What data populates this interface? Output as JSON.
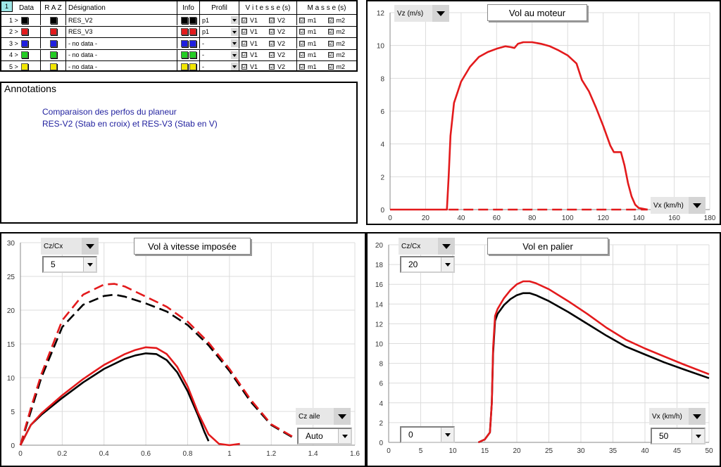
{
  "table": {
    "corner_label": "1",
    "headers": {
      "data": "Data",
      "raz": "R A Z",
      "designation": "Désignation",
      "info": "Info",
      "profil": "Profil",
      "vitesses": "V i t e s s e (s)",
      "masses": "M a s s e (s)"
    },
    "rows": [
      {
        "index": "1 >",
        "color": "#000000",
        "designation": "RES_V2",
        "profil": "p1",
        "v1": "V1",
        "v2": "V2",
        "m1": "m1",
        "m2": "m2"
      },
      {
        "index": "2 >",
        "color": "#e31a1c",
        "designation": "RES_V3",
        "profil": "p1",
        "v1": "V1",
        "v2": "V2",
        "m1": "m1",
        "m2": "m2"
      },
      {
        "index": "3 >",
        "color": "#1f1fe0",
        "designation": "- no data -",
        "profil": "-",
        "v1": "V1",
        "v2": "V2",
        "m1": "m1",
        "m2": "m2"
      },
      {
        "index": "4 >",
        "color": "#22cc22",
        "designation": "- no data -",
        "profil": "-",
        "v1": "V1",
        "v2": "V2",
        "m1": "m1",
        "m2": "m2"
      },
      {
        "index": "5 >",
        "color": "#f2e600",
        "designation": "- no data -",
        "profil": "-",
        "v1": "V1",
        "v2": "V2",
        "m1": "m1",
        "m2": "m2"
      }
    ],
    "check_glyph": "☑"
  },
  "annotations": {
    "title": "Annotations",
    "lines": [
      "Comparaison des perfos du planeur",
      "RES-V2 (Stab en croix) et RES-V3 (Stab en V)"
    ]
  },
  "charts": {
    "motor": {
      "title": "Vol au moteur",
      "y_selector": "Vz (m/s)",
      "x_selector": "Vx (km/h)"
    },
    "imposed": {
      "title": "Vol à vitesse imposée",
      "y_selector": "Cz/Cx",
      "y_combo": "5",
      "x_selector": "Cz aile",
      "x_combo": "Auto"
    },
    "level": {
      "title": "Vol en palier",
      "y_selector": "Cz/Cx",
      "y_combo": "20",
      "x_selector": "Vx (km/h)",
      "x_combo": "50",
      "left_combo": "0"
    }
  },
  "chart_data": [
    {
      "id": "motor",
      "type": "line",
      "title": "Vol au moteur",
      "xlabel": "Vx (km/h)",
      "ylabel": "Vz (m/s)",
      "xlim": [
        0,
        180
      ],
      "ylim": [
        0,
        12
      ],
      "xticks": [
        0,
        20,
        40,
        60,
        80,
        100,
        120,
        140,
        160,
        180
      ],
      "yticks": [
        0,
        2,
        4,
        6,
        8,
        10,
        12
      ],
      "grid": true,
      "series": [
        {
          "name": "RES_V3",
          "color": "#e31a1c",
          "style": "solid",
          "x": [
            0,
            32,
            33,
            34,
            36,
            40,
            45,
            50,
            55,
            60,
            65,
            68,
            70,
            72,
            75,
            80,
            85,
            90,
            95,
            100,
            105,
            108,
            112,
            116,
            120,
            124,
            126,
            128,
            130,
            132,
            134,
            136,
            138,
            140,
            145
          ],
          "y": [
            0,
            0,
            2,
            4.5,
            6.5,
            7.8,
            8.7,
            9.3,
            9.6,
            9.8,
            9.95,
            9.9,
            9.85,
            10.1,
            10.2,
            10.2,
            10.1,
            9.95,
            9.7,
            9.4,
            8.9,
            7.9,
            7.2,
            6.2,
            5.1,
            3.9,
            3.5,
            3.5,
            3.5,
            2.7,
            1.6,
            0.8,
            0.3,
            0.1,
            0
          ]
        },
        {
          "name": "RES_V3 (V2)",
          "color": "#e31a1c",
          "style": "dashed",
          "x": [
            33,
            145
          ],
          "y": [
            0,
            0
          ]
        }
      ]
    },
    {
      "id": "imposed",
      "type": "line",
      "title": "Vol à vitesse imposée",
      "xlabel": "Cz aile",
      "ylabel": "Cz/Cx",
      "xlim": [
        0,
        1.6
      ],
      "ylim": [
        0,
        30
      ],
      "xticks": [
        0,
        0.2,
        0.4,
        0.6,
        0.8,
        1,
        1.2,
        1.4,
        1.6
      ],
      "yticks": [
        0,
        5,
        10,
        15,
        20,
        25,
        30
      ],
      "grid": true,
      "series": [
        {
          "name": "RES_V2",
          "color": "#000000",
          "style": "solid",
          "x": [
            0,
            0.05,
            0.1,
            0.2,
            0.3,
            0.4,
            0.5,
            0.55,
            0.6,
            0.65,
            0.7,
            0.75,
            0.8,
            0.85,
            0.88,
            0.9
          ],
          "y": [
            0,
            3,
            4.5,
            7,
            9.3,
            11.3,
            12.8,
            13.3,
            13.6,
            13.5,
            12.6,
            10.8,
            8,
            4.4,
            2,
            0.6
          ]
        },
        {
          "name": "RES_V3",
          "color": "#e31a1c",
          "style": "solid",
          "x": [
            0,
            0.05,
            0.1,
            0.2,
            0.3,
            0.4,
            0.5,
            0.55,
            0.6,
            0.65,
            0.7,
            0.75,
            0.8,
            0.85,
            0.9,
            0.95,
            1.0,
            1.05
          ],
          "y": [
            0,
            3,
            4.7,
            7.4,
            9.8,
            11.9,
            13.5,
            14.1,
            14.5,
            14.4,
            13.5,
            11.6,
            8.7,
            4.8,
            1.6,
            0.2,
            0,
            0.2
          ]
        },
        {
          "name": "RES_V2 (V2)",
          "color": "#000000",
          "style": "dashed",
          "x": [
            0,
            0.05,
            0.1,
            0.2,
            0.3,
            0.4,
            0.45,
            0.5,
            0.6,
            0.7,
            0.8,
            0.9,
            1.0,
            1.1,
            1.2,
            1.3
          ],
          "y": [
            0,
            5,
            10,
            17.5,
            20.8,
            22.1,
            22.3,
            22,
            21,
            19.8,
            17.8,
            14.8,
            11,
            6.5,
            3,
            1.2
          ]
        },
        {
          "name": "RES_V3 (V2)",
          "color": "#e31a1c",
          "style": "dashed",
          "x": [
            0,
            0.05,
            0.1,
            0.2,
            0.3,
            0.4,
            0.45,
            0.5,
            0.6,
            0.7,
            0.8,
            0.9,
            1.0,
            1.1,
            1.2,
            1.3
          ],
          "y": [
            0,
            5.5,
            10.5,
            18.5,
            22.3,
            23.8,
            23.9,
            23.5,
            22,
            20.5,
            18.3,
            15.2,
            11.3,
            6.8,
            3.1,
            1.3
          ]
        }
      ]
    },
    {
      "id": "level",
      "type": "line",
      "title": "Vol en palier",
      "xlabel": "Vx (km/h)",
      "ylabel": "Cz/Cx",
      "xlim": [
        0,
        50
      ],
      "ylim": [
        0,
        20
      ],
      "xticks": [
        0,
        5,
        10,
        15,
        20,
        25,
        30,
        35,
        40,
        45,
        50
      ],
      "yticks": [
        0,
        2,
        4,
        6,
        8,
        10,
        12,
        14,
        16,
        18,
        20
      ],
      "grid": true,
      "series": [
        {
          "name": "RES_V2",
          "color": "#000000",
          "style": "solid",
          "x": [
            14,
            15,
            15.8,
            16.1,
            16.3,
            16.6,
            17,
            18,
            19,
            20,
            21,
            22,
            23,
            25,
            28,
            31,
            34,
            37,
            40,
            43,
            46,
            50
          ],
          "y": [
            0,
            0.3,
            1,
            4,
            9,
            12.3,
            13,
            13.9,
            14.5,
            14.9,
            15.1,
            15.1,
            14.9,
            14.3,
            13.2,
            12,
            10.8,
            9.7,
            8.9,
            8.1,
            7.4,
            6.5
          ]
        },
        {
          "name": "RES_V3",
          "color": "#e31a1c",
          "style": "solid",
          "x": [
            14,
            15,
            15.8,
            16.1,
            16.3,
            16.6,
            17,
            18,
            19,
            20,
            21,
            22,
            23,
            25,
            28,
            31,
            34,
            37,
            40,
            43,
            46,
            50
          ],
          "y": [
            0,
            0.3,
            1,
            4,
            9.5,
            12.8,
            13.5,
            14.6,
            15.4,
            16,
            16.3,
            16.3,
            16.1,
            15.5,
            14.3,
            13,
            11.6,
            10.4,
            9.5,
            8.7,
            7.9,
            6.9
          ]
        }
      ]
    }
  ]
}
